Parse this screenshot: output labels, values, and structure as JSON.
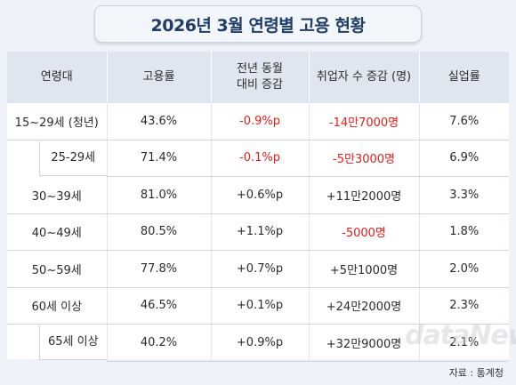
{
  "title": "2026년 3월 연령별 고용 현황",
  "headers": {
    "age": "연령대",
    "employment_rate": "고용률",
    "yoy_line1": "전년 동월",
    "yoy_line2": "대비 증감",
    "change": "취업자 수 증감 (명)",
    "unemployment": "실업률"
  },
  "rows": [
    {
      "age": "15~29세 (청년)",
      "rate": "43.6%",
      "yoy": "-0.9%p",
      "change": "-14만7000명",
      "unemp": "7.6%"
    },
    {
      "age": "25-29세",
      "rate": "71.4%",
      "yoy": "-0.1%p",
      "change": "-5만3000명",
      "unemp": "6.9%"
    },
    {
      "age": "30~39세",
      "rate": "81.0%",
      "yoy": "+0.6%p",
      "change": "+11만2000명",
      "unemp": "3.3%"
    },
    {
      "age": "40~49세",
      "rate": "80.5%",
      "yoy": "+1.1%p",
      "change": "-5000명",
      "unemp": "1.8%"
    },
    {
      "age": "50~59세",
      "rate": "77.8%",
      "yoy": "+0.7%p",
      "change": "+5만1000명",
      "unemp": "2.0%"
    },
    {
      "age": "60세 이상",
      "rate": "46.5%",
      "yoy": "+0.1%p",
      "change": "+24만2000명",
      "unemp": "2.3%"
    },
    {
      "age": "65세 이상",
      "rate": "40.2%",
      "yoy": "+0.9%p",
      "change": "+32만9000명",
      "unemp": "2.1%"
    }
  ],
  "watermark": "dataNews",
  "source": "자료 : 통계청",
  "colors": {
    "negative": "#e0201b",
    "title": "#1f3d66",
    "header_bg": "#dfe6ef"
  }
}
